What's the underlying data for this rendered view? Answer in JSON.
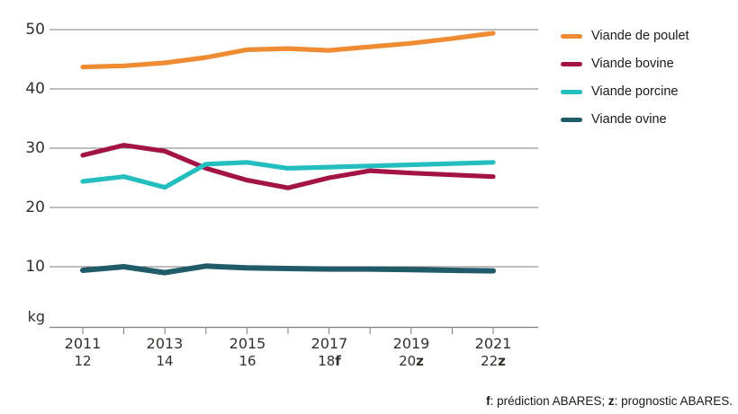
{
  "chart_data": {
    "type": "line",
    "title": "",
    "unit_label": "kg",
    "ylabel": "kg",
    "ylim": [
      0,
      52
    ],
    "grid": "horizontal-only",
    "legend_position": "right",
    "grid_color": "#7e7b78",
    "label_color": "#33302c",
    "y_ticks": [
      50,
      40,
      30,
      20,
      10
    ],
    "categories": [
      "2011-12",
      "2012-13",
      "2013-14",
      "2014-15",
      "2015-16",
      "2016-17",
      "2017-18",
      "2018-19",
      "2019-20",
      "2020-21",
      "2021-22"
    ],
    "x_labels": [
      {
        "year": "2011",
        "sub": "12",
        "suffix": ""
      },
      {
        "year": "2013",
        "sub": "14",
        "suffix": ""
      },
      {
        "year": "2015",
        "sub": "16",
        "suffix": ""
      },
      {
        "year": "2017",
        "sub": "18",
        "suffix": "f"
      },
      {
        "year": "2019",
        "sub": "20",
        "suffix": "z"
      },
      {
        "year": "2021",
        "sub": "22",
        "suffix": "z"
      }
    ],
    "series": [
      {
        "name": "Viande de poulet",
        "color": "#EF8B33",
        "values": [
          43.7,
          43.9,
          44.4,
          45.3,
          46.6,
          46.8,
          46.5,
          47.1,
          47.7,
          48.5,
          49.4
        ]
      },
      {
        "name": "Viande bovine",
        "color": "#A31345",
        "values": [
          28.8,
          30.5,
          29.5,
          26.6,
          24.6,
          23.3,
          25.0,
          26.2,
          25.8,
          25.5,
          25.2
        ]
      },
      {
        "name": "Viande porcine",
        "color": "#24BEBF",
        "values": [
          24.4,
          25.2,
          23.4,
          27.3,
          27.6,
          26.6,
          26.8,
          27.0,
          27.2,
          27.4,
          27.6
        ]
      },
      {
        "name": "Viande ovine",
        "color": "#215A68",
        "values": [
          9.4,
          10.0,
          9.0,
          10.1,
          9.8,
          9.7,
          9.6,
          9.6,
          9.5,
          9.4,
          9.3
        ]
      }
    ]
  },
  "footnote": {
    "f_label": "f",
    "f_text": ": prédiction ABARES; ",
    "z_label": "z",
    "z_text": ": prognostic ABARES."
  }
}
